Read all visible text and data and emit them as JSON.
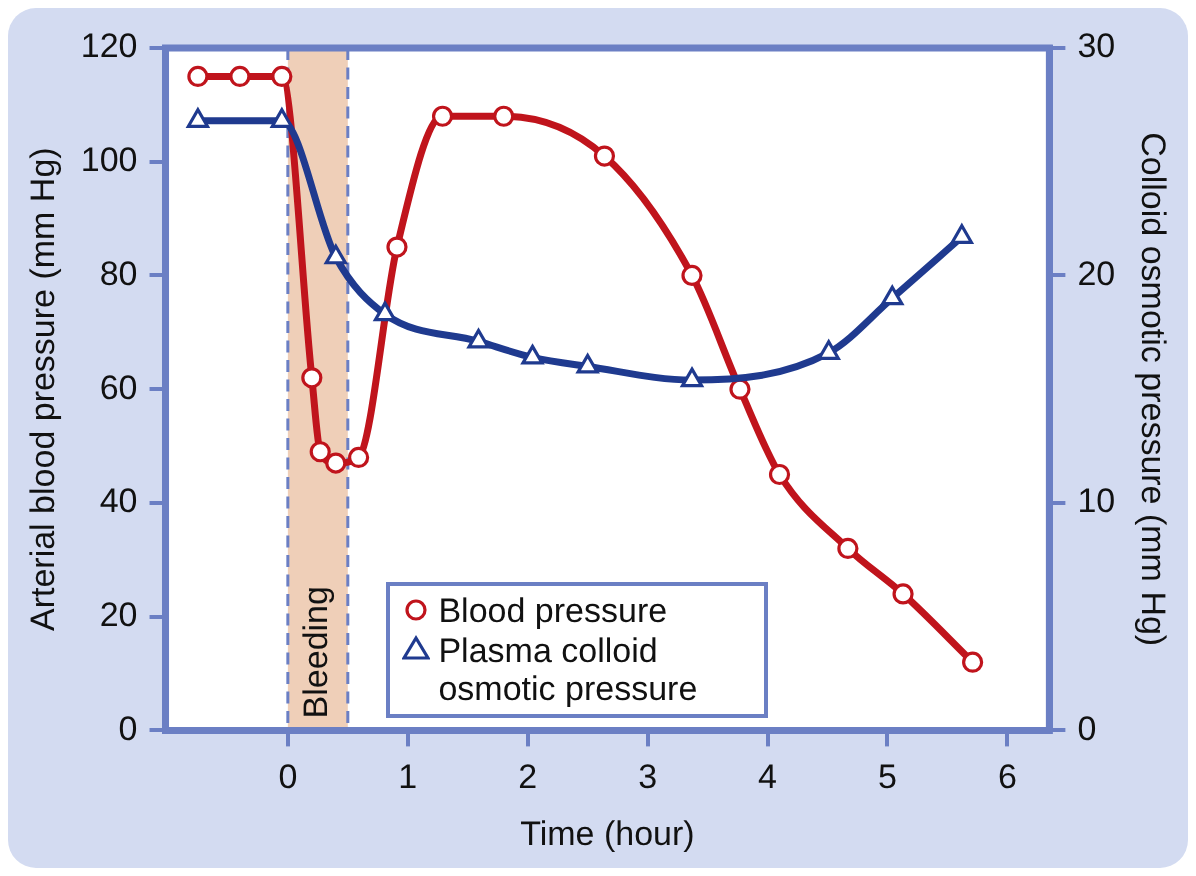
{
  "chart_data": {
    "type": "line",
    "xlabel": "Time (hour)",
    "ylabel": "Arterial blood pressure (mm Hg)",
    "y2label": "Colloid osmotic pressure (mm Hg)",
    "xlim": [
      -1.02,
      6.35
    ],
    "xticks": [
      0,
      1,
      2,
      3,
      4,
      5,
      6
    ],
    "ylim": [
      0,
      120
    ],
    "yticks": [
      0,
      20,
      40,
      60,
      80,
      100,
      120
    ],
    "y2lim": [
      0,
      30
    ],
    "y2ticks": [
      0,
      10,
      20,
      30
    ],
    "grid": false,
    "legend": "bottom",
    "line_style": "solid",
    "ref_lines": [
      {
        "axis": "x",
        "value": 0,
        "color": "#6b7fc4",
        "line_style": "dashed"
      },
      {
        "axis": "x",
        "value": 0.5,
        "color": "#6b7fc4",
        "line_style": "dashed"
      }
    ],
    "bands": [
      {
        "axis": "x",
        "from": 0,
        "to": 0.5,
        "label": "Bleeding",
        "color": "#efcfb8"
      }
    ],
    "series": [
      {
        "name": "Blood pressure",
        "color": "#c0141c",
        "marker": "circle",
        "x": [
          -0.75,
          -0.4,
          -0.05,
          0.2,
          0.27,
          0.4,
          0.59,
          0.91,
          1.29,
          1.8,
          2.64,
          3.37,
          3.77,
          4.1,
          4.67,
          5.13,
          5.71
        ],
        "values": [
          115,
          115,
          115,
          62,
          49,
          47,
          48,
          85,
          108,
          108,
          101,
          80,
          60,
          45,
          32,
          24,
          12
        ]
      },
      {
        "name": "Plasma colloid osmotic pressure",
        "color": "#1f3a8f",
        "marker": "triangle",
        "axis": "y2",
        "x": [
          -0.75,
          -0.05,
          0.4,
          0.81,
          1.59,
          2.04,
          2.5,
          3.37,
          4.51,
          5.04,
          5.62
        ],
        "values": [
          26.8,
          26.8,
          20.8,
          18.3,
          17.1,
          16.4,
          16.0,
          15.4,
          16.6,
          19.0,
          21.7
        ]
      }
    ]
  }
}
